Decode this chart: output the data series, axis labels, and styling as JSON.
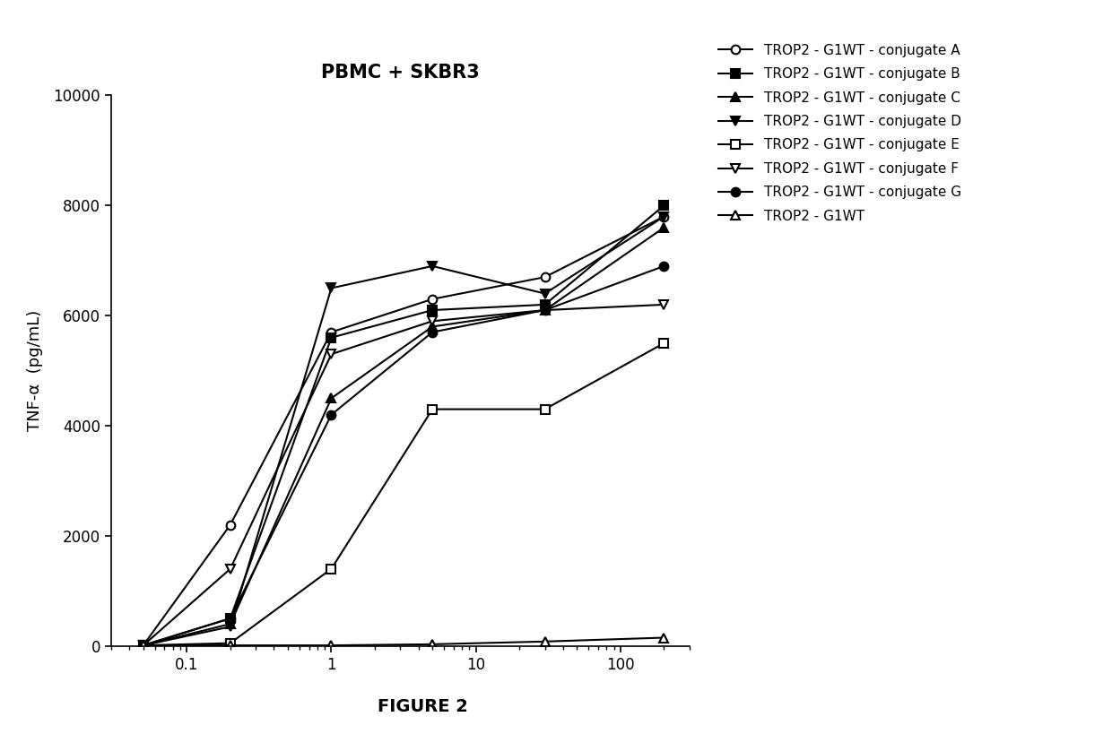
{
  "title": "PBMC + SKBR3",
  "ylabel": "TNF-α  (pg/mL)",
  "figure_label": "FIGURE 2",
  "xlim": [
    0.03,
    300
  ],
  "ylim": [
    0,
    10000
  ],
  "yticks": [
    0,
    2000,
    4000,
    6000,
    8000,
    10000
  ],
  "xticks": [
    0.1,
    1,
    10,
    100
  ],
  "series": [
    {
      "label": "TROP2 - G1WT - conjugate A",
      "marker": "o",
      "fillstyle": "none",
      "linewidth": 1.5,
      "markersize": 7,
      "x": [
        0.05,
        0.2,
        1.0,
        5.0,
        30.0,
        200.0
      ],
      "y": [
        10,
        2200,
        5700,
        6300,
        6700,
        7800
      ]
    },
    {
      "label": "TROP2 - G1WT - conjugate B",
      "marker": "s",
      "fillstyle": "full",
      "linewidth": 1.5,
      "markersize": 7,
      "x": [
        0.05,
        0.2,
        1.0,
        5.0,
        30.0,
        200.0
      ],
      "y": [
        10,
        500,
        5600,
        6100,
        6200,
        8000
      ]
    },
    {
      "label": "TROP2 - G1WT - conjugate C",
      "marker": "^",
      "fillstyle": "full",
      "linewidth": 1.5,
      "markersize": 7,
      "x": [
        0.05,
        0.2,
        1.0,
        5.0,
        30.0,
        200.0
      ],
      "y": [
        10,
        400,
        4500,
        5800,
        6100,
        7600
      ]
    },
    {
      "label": "TROP2 - G1WT - conjugate D",
      "marker": "v",
      "fillstyle": "full",
      "linewidth": 1.5,
      "markersize": 7,
      "x": [
        0.05,
        0.2,
        1.0,
        5.0,
        30.0,
        200.0
      ],
      "y": [
        10,
        350,
        6500,
        6900,
        6400,
        7800
      ]
    },
    {
      "label": "TROP2 - G1WT - conjugate E",
      "marker": "s",
      "fillstyle": "none",
      "linewidth": 1.5,
      "markersize": 7,
      "x": [
        0.05,
        0.2,
        1.0,
        5.0,
        30.0,
        200.0
      ],
      "y": [
        10,
        50,
        1400,
        4300,
        4300,
        5500
      ]
    },
    {
      "label": "TROP2 - G1WT - conjugate F",
      "marker": "v",
      "fillstyle": "none",
      "linewidth": 1.5,
      "markersize": 7,
      "x": [
        0.05,
        0.2,
        1.0,
        5.0,
        30.0,
        200.0
      ],
      "y": [
        10,
        1400,
        5300,
        5900,
        6100,
        6200
      ]
    },
    {
      "label": "TROP2 - G1WT - conjugate G",
      "marker": "o",
      "fillstyle": "full",
      "linewidth": 1.5,
      "markersize": 7,
      "x": [
        0.05,
        0.2,
        1.0,
        5.0,
        30.0,
        200.0
      ],
      "y": [
        10,
        500,
        4200,
        5700,
        6100,
        6900
      ]
    },
    {
      "label": "TROP2 - G1WT",
      "marker": "^",
      "fillstyle": "none",
      "linewidth": 1.5,
      "markersize": 7,
      "x": [
        0.05,
        0.2,
        1.0,
        5.0,
        30.0,
        200.0
      ],
      "y": [
        10,
        10,
        10,
        30,
        80,
        150
      ]
    }
  ],
  "background_color": "#ffffff",
  "title_fontsize": 15,
  "axis_fontsize": 13,
  "legend_fontsize": 11,
  "tick_fontsize": 12
}
